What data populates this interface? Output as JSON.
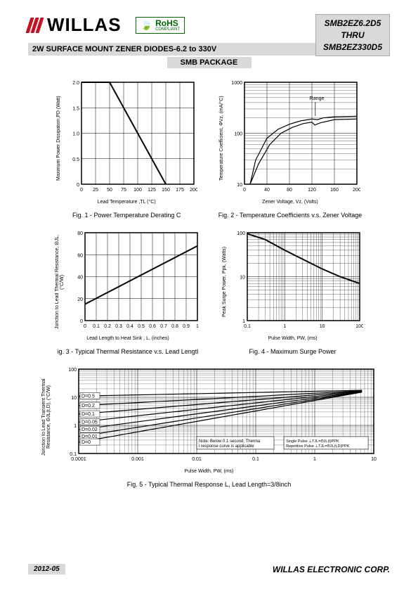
{
  "header": {
    "brand": "WILLAS",
    "rohs": "RoHS",
    "rohs_sub": "COMPLIANT",
    "part_top": "SMB2EZ6.2D5",
    "part_mid": "THRU",
    "part_bot": "SMB2EZ330D5"
  },
  "title": "2W SURFACE MOUNT ZENER DIODES-6.2 to 330V",
  "package": "SMB PACKAGE",
  "footer": {
    "date": "2012-05",
    "corp": "WILLAS ELECTRONIC CORP."
  },
  "fig1": {
    "caption": "Fig. 1 - Power Temperature Derating C",
    "xlabel": "Lead Temperature ,TL  (°C)",
    "ylabel": "Maximum Power Dissipation,PD  (Watt)",
    "xticks": [
      "0",
      "25",
      "50",
      "75",
      "100",
      "125",
      "150",
      "175",
      "200"
    ],
    "yticks": [
      "0",
      "0.5",
      "1.0",
      "1.5",
      "2.0"
    ],
    "line": [
      [
        0,
        2.0
      ],
      [
        50,
        2.0
      ],
      [
        150,
        0
      ]
    ]
  },
  "fig2": {
    "caption": "Fig. 2 - Temperature Coefficients v.s. Zener Voltage",
    "xlabel": "Zener Voltage, Vz, (Volts)",
    "ylabel": "Temperature Coefficient, ΦVz,  (mA/°C)",
    "xticks": [
      "0",
      "40",
      "80",
      "120",
      "160",
      "200"
    ],
    "yticks": [
      "10",
      "100",
      "1000"
    ],
    "range_label": "Range",
    "curves": [
      [
        [
          10,
          10
        ],
        [
          20,
          30
        ],
        [
          40,
          80
        ],
        [
          60,
          120
        ],
        [
          80,
          150
        ],
        [
          100,
          175
        ],
        [
          120,
          190
        ],
        [
          130,
          185
        ],
        [
          140,
          200
        ],
        [
          160,
          210
        ],
        [
          200,
          215
        ]
      ],
      [
        [
          10,
          10
        ],
        [
          25,
          25
        ],
        [
          45,
          60
        ],
        [
          65,
          100
        ],
        [
          85,
          130
        ],
        [
          105,
          155
        ],
        [
          120,
          165
        ],
        [
          125,
          145
        ],
        [
          135,
          160
        ],
        [
          160,
          185
        ],
        [
          200,
          190
        ]
      ]
    ]
  },
  "fig3": {
    "caption": "ig. 3 - Typical Thermal Resistance v.s. Lead Lengtl",
    "xlabel": "Lead Length to Heat Sink , L,  (inches)",
    "ylabel": "Junction to Lead Thermal Resistance,\nΘJL, (°C/W)",
    "xticks": [
      "0",
      "0.1",
      "0.2",
      "0.3",
      "0.4",
      "0.5",
      "0.6",
      "0.7",
      "0.8",
      "0.9",
      "1"
    ],
    "yticks": [
      "0",
      "20",
      "40",
      "60",
      "80"
    ],
    "line": [
      [
        0,
        15
      ],
      [
        1,
        68
      ]
    ]
  },
  "fig4": {
    "caption": "Fig. 4 - Maximum Surge Power",
    "xlabel": "Pulse Width, PW, (ms)",
    "ylabel": "Peak Surge Power, Ppk, (Watts)",
    "xticks": [
      "0.1",
      "1",
      "10",
      "100"
    ],
    "yticks": [
      "1",
      "10",
      "100"
    ],
    "curve": [
      [
        0.1,
        95
      ],
      [
        0.3,
        70
      ],
      [
        1,
        40
      ],
      [
        3,
        25
      ],
      [
        10,
        15
      ],
      [
        30,
        10
      ],
      [
        100,
        7
      ]
    ]
  },
  "fig5": {
    "caption": "Fig. 5 - Typical Thermal Response L, Lead Length=3/8inch",
    "xlabel": "Pulse Width, PW, (ms)",
    "ylabel": "Junction to Lead Transient Thermal\nResistance, ΘJL(t,D), (°C/W)",
    "xticks": [
      "0.0001",
      "0.001",
      "0.01",
      "0.1",
      "1",
      "10"
    ],
    "yticks": [
      "0.1",
      "1",
      "10",
      "100"
    ],
    "dlabels": [
      "D=0.5",
      "D=0.2",
      "D=0.1",
      "D=0.05",
      "D=0.02",
      "D=0.01",
      "D=0"
    ],
    "note": "Note: Below 0.1 second, Thermal response curve is applicable",
    "legend1": "Single Pulse ⊥TJL=ΘJL(t)PPK",
    "legend2": "Repetitive Pulse ⊥TJL=ΘJL(t,D)PPK"
  }
}
